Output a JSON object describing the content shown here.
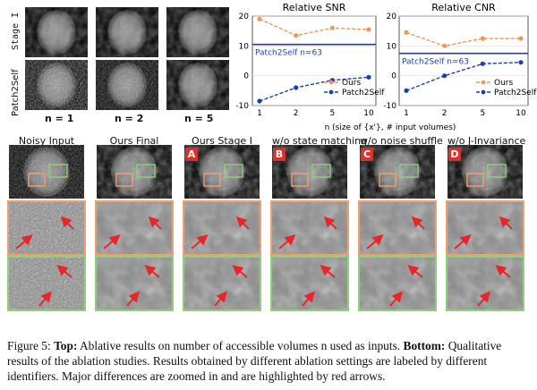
{
  "top": {
    "row_labels": [
      "Stage I",
      "Patch2Self"
    ],
    "n_labels": [
      "n = 1",
      "n = 2",
      "n = 5"
    ]
  },
  "chart_data": [
    {
      "type": "line",
      "title": "Relative SNR",
      "x": [
        1,
        2,
        5,
        10
      ],
      "x_ticks": [
        "1",
        "2",
        "5",
        "10"
      ],
      "ylim": [
        -10,
        20
      ],
      "y_ticks": [
        -10,
        0,
        10,
        20
      ],
      "series": [
        {
          "name": "Ours",
          "values": [
            19,
            13.5,
            16,
            15.5
          ],
          "color": "#f0965a"
        },
        {
          "name": "Patch2Self",
          "values": [
            -8.5,
            -4,
            -1.5,
            -0.5
          ],
          "color": "#1f3fa8"
        }
      ],
      "reference": {
        "label": "Patch2Self n=63",
        "value": 10.5,
        "color": "#1f3fa8"
      },
      "legend": "right"
    },
    {
      "type": "line",
      "title": "Relative CNR",
      "x": [
        1,
        2,
        5,
        10
      ],
      "x_ticks": [
        "1",
        "2",
        "5",
        "10"
      ],
      "ylim": [
        -10,
        20
      ],
      "y_ticks": [
        -10,
        0,
        10,
        20
      ],
      "series": [
        {
          "name": "Ours",
          "values": [
            14.5,
            10,
            12.5,
            12.5
          ],
          "color": "#f0965a"
        },
        {
          "name": "Patch2Self",
          "values": [
            -5,
            0,
            4,
            4.5
          ],
          "color": "#1f3fa8"
        }
      ],
      "reference": {
        "label": "Patch2Self n=63",
        "value": 7.5,
        "color": "#1f3fa8"
      },
      "legend": "right"
    }
  ],
  "xaxis_label": "n (size of {x'}, # input volumes)",
  "bottom": {
    "columns": [
      {
        "title": "Noisy Input",
        "tag": ""
      },
      {
        "title": "Ours Final",
        "tag": ""
      },
      {
        "title": "Ours Stage I",
        "tag": "A"
      },
      {
        "title": "w/o state matching",
        "tag": "B"
      },
      {
        "title": "w/o noise shuffle",
        "tag": "C"
      },
      {
        "title": "w/o J-Invariance",
        "tag": "D"
      }
    ]
  },
  "caption": {
    "label": "Figure 5:",
    "top_bold": "Top:",
    "top_text": "Ablative results on number of accessible volumes n used as inputs.",
    "bottom_bold": "Bottom:",
    "bottom_text": "Qualitative results of the ablation studies. Results obtained by different ablation settings are labeled by different identifiers. Major differences are zoomed in and are highlighted by red arrows."
  },
  "colors": {
    "orange_box": "#f0a070",
    "green_box": "#8fd07a",
    "arrow": "#e8262a"
  }
}
